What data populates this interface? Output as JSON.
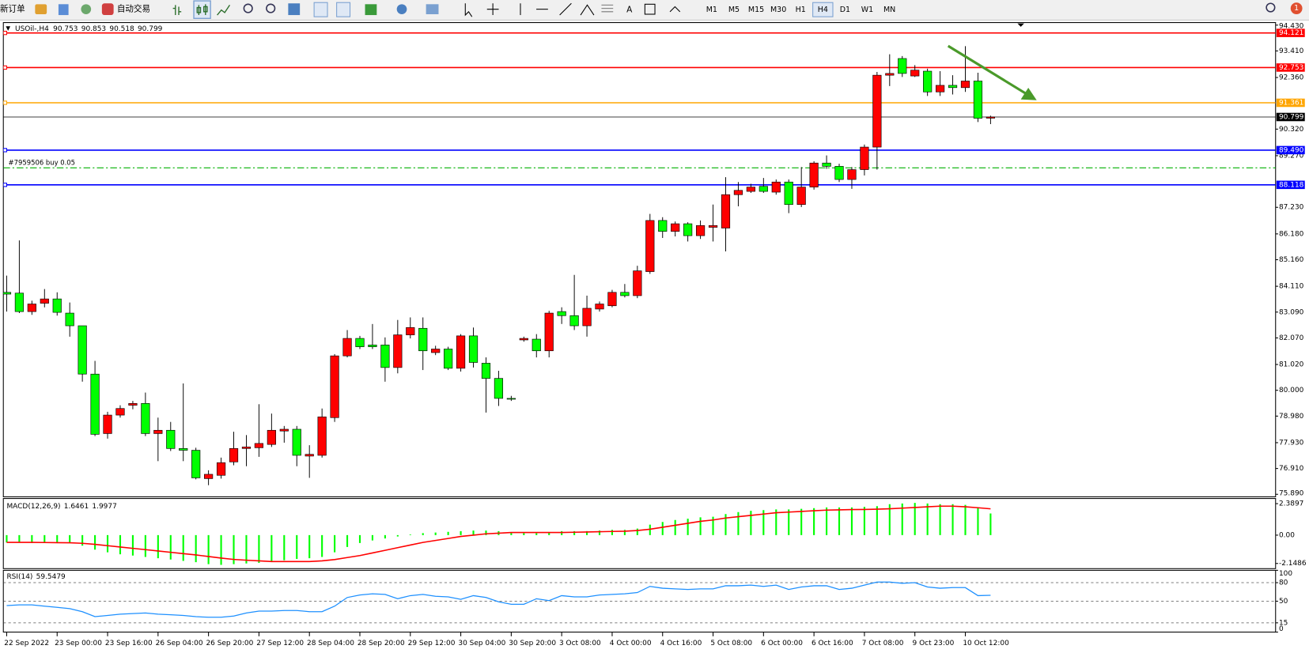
{
  "toolbar": {
    "new_order": "新订单",
    "auto_trading": "自动交易",
    "timeframes": [
      "M1",
      "M5",
      "M15",
      "M30",
      "H1",
      "H4",
      "D1",
      "W1",
      "MN"
    ],
    "active_timeframe": "H4",
    "notifications": 1
  },
  "chart_data": [
    {
      "type": "candlestick",
      "title": "USOil-,H4",
      "categories": [
        "22 Sep 2022",
        null,
        null,
        null,
        "23 Sep 00:00",
        null,
        null,
        null,
        "23 Sep 16:00",
        null,
        null,
        null,
        "26 Sep 04:00",
        null,
        null,
        null,
        "26 Sep 20:00",
        null,
        null,
        null,
        "27 Sep 12:00",
        null,
        null,
        null,
        "28 Sep 04:00",
        null,
        null,
        null,
        "28 Sep 20:00",
        null,
        null,
        null,
        "29 Sep 12:00",
        null,
        null,
        null,
        "30 Sep 04:00",
        null,
        null,
        null,
        "30 Sep 20:00",
        null,
        null,
        null,
        "3 Oct 08:00",
        null,
        null,
        null,
        "4 Oct 00:00",
        null,
        null,
        null,
        "4 Oct 16:00",
        null,
        null,
        null,
        "5 Oct 08:00",
        null,
        null,
        null,
        "6 Oct 00:00",
        null,
        null,
        null,
        "6 Oct 16:00",
        null,
        null,
        null,
        "7 Oct 08:00",
        null,
        null,
        null,
        "9 Oct 23:00",
        null,
        null,
        null,
        "10 Oct 12:00",
        null,
        null
      ],
      "open": [
        83.87,
        83.84,
        83.11,
        83.44,
        83.61,
        83.05,
        82.55,
        80.64,
        78.29,
        79.02,
        79.41,
        79.48,
        78.29,
        78.42,
        77.7,
        77.63,
        76.51,
        76.64,
        77.17,
        77.7,
        77.73,
        77.86,
        78.39,
        78.46,
        77.4,
        77.43,
        78.92,
        81.36,
        82.05,
        81.79,
        81.79,
        80.9,
        82.19,
        82.45,
        81.49,
        81.63,
        80.87,
        82.15,
        81.07,
        80.47,
        79.68,
        81.99,
        82.02,
        81.56,
        83.11,
        82.95,
        82.55,
        83.21,
        83.34,
        83.87,
        83.74,
        84.69,
        86.71,
        86.28,
        86.58,
        86.11,
        86.44,
        86.41,
        87.73,
        87.86,
        88.06,
        87.83,
        88.23,
        87.34,
        88.03,
        88.98,
        88.85,
        88.33,
        88.72,
        89.61,
        92.45,
        93.11,
        92.42,
        92.61,
        91.79,
        92.05,
        91.96,
        92.22,
        90.753
      ],
      "high": [
        84.53,
        85.92,
        83.54,
        84.0,
        83.87,
        83.47,
        82.55,
        81.16,
        79.15,
        79.41,
        79.58,
        79.91,
        78.92,
        78.75,
        80.27,
        77.73,
        76.84,
        77.34,
        78.36,
        78.23,
        79.45,
        79.08,
        78.59,
        78.59,
        77.83,
        79.28,
        81.43,
        82.38,
        82.15,
        82.62,
        82.09,
        82.78,
        82.88,
        82.88,
        81.76,
        81.72,
        82.22,
        82.48,
        81.3,
        80.77,
        79.78,
        82.12,
        82.22,
        83.14,
        83.28,
        84.56,
        83.74,
        83.51,
        83.97,
        84.2,
        84.92,
        86.97,
        86.84,
        86.67,
        86.64,
        86.71,
        87.34,
        88.42,
        88.23,
        88.16,
        88.39,
        88.33,
        88.33,
        88.82,
        89.05,
        89.28,
        88.95,
        88.82,
        89.71,
        92.58,
        93.28,
        93.21,
        92.85,
        92.71,
        92.61,
        92.45,
        93.6,
        92.55,
        90.853
      ],
      "low": [
        83.11,
        83.05,
        82.98,
        83.28,
        82.95,
        82.12,
        80.34,
        78.19,
        78.09,
        78.92,
        79.25,
        78.19,
        77.2,
        77.6,
        77.2,
        76.48,
        76.25,
        76.51,
        77.04,
        77.0,
        77.37,
        77.76,
        77.93,
        77.0,
        76.54,
        77.34,
        78.75,
        81.3,
        81.63,
        81.63,
        80.34,
        80.67,
        82.05,
        80.8,
        81.39,
        80.8,
        80.74,
        80.9,
        79.12,
        79.38,
        79.58,
        81.92,
        81.3,
        81.3,
        82.62,
        82.38,
        82.12,
        83.11,
        83.28,
        83.67,
        83.64,
        84.6,
        86.02,
        86.08,
        85.88,
        85.98,
        85.88,
        85.49,
        87.27,
        87.8,
        87.8,
        87.73,
        87.0,
        87.24,
        87.93,
        88.75,
        88.23,
        87.96,
        88.49,
        88.72,
        92.02,
        92.38,
        92.38,
        91.63,
        91.63,
        91.69,
        91.79,
        90.6,
        90.518
      ],
      "close": [
        83.8,
        83.11,
        83.41,
        83.61,
        83.08,
        82.55,
        80.64,
        78.26,
        79.02,
        79.28,
        79.48,
        78.29,
        78.42,
        77.7,
        77.63,
        76.54,
        76.68,
        77.14,
        77.7,
        77.76,
        77.9,
        78.42,
        78.46,
        77.43,
        77.47,
        78.95,
        81.36,
        82.05,
        81.72,
        81.72,
        80.9,
        82.19,
        82.48,
        81.56,
        81.63,
        80.87,
        82.15,
        81.1,
        80.47,
        79.68,
        79.65,
        82.05,
        81.56,
        83.05,
        82.95,
        82.55,
        83.24,
        83.41,
        83.87,
        83.74,
        84.72,
        86.71,
        86.28,
        86.58,
        86.11,
        86.51,
        86.51,
        87.73,
        87.9,
        88.03,
        87.86,
        88.23,
        87.34,
        88.03,
        88.98,
        88.85,
        88.33,
        88.72,
        89.61,
        92.45,
        92.52,
        92.52,
        92.65,
        91.79,
        92.05,
        91.96,
        92.22,
        90.75,
        90.799
      ],
      "up_color": "#ff0000",
      "down_color": "#00ff00",
      "ylim": [
        75.79,
        94.53
      ],
      "yticks": [
        {
          "value": 94.43,
          "label": "94.430"
        },
        {
          "value": 93.41,
          "label": "93.410"
        },
        {
          "value": 92.36,
          "label": "92.360"
        },
        {
          "value": 90.32,
          "label": "90.320"
        },
        {
          "value": 89.27,
          "label": "89.270"
        },
        {
          "value": 87.23,
          "label": "87.230"
        },
        {
          "value": 86.18,
          "label": "86.180"
        },
        {
          "value": 85.16,
          "label": "85.160"
        },
        {
          "value": 84.11,
          "label": "84.110"
        },
        {
          "value": 83.09,
          "label": "83.090"
        },
        {
          "value": 82.07,
          "label": "82.070"
        },
        {
          "value": 81.02,
          "label": "81.020"
        },
        {
          "value": 80,
          "label": "80.000"
        },
        {
          "value": 78.98,
          "label": "78.980"
        },
        {
          "value": 77.93,
          "label": "77.930"
        },
        {
          "value": 76.91,
          "label": "76.910"
        },
        {
          "value": 75.89,
          "label": "75.890"
        }
      ],
      "levels": [
        {
          "value": 94.121,
          "color": "#ff0000"
        },
        {
          "value": 92.753,
          "color": "#ff0000"
        },
        {
          "value": 91.361,
          "color": "#ffa500"
        },
        {
          "value": 89.49,
          "label": "89.490",
          "color": "#0000ff"
        },
        {
          "value": 88.118,
          "color": "#0000ff"
        }
      ],
      "order_line": {
        "label": "#7959506 buy 0.05",
        "value": 88.79,
        "color": "#00b000"
      }
    },
    {
      "type": "macd",
      "title": "MACD(12,26,9)",
      "histogram": {
        "color": "#00ff00",
        "values": [
          -0.55,
          -0.55,
          -0.6,
          -0.6,
          -0.55,
          -0.6,
          -0.8,
          -1.1,
          -1.3,
          -1.45,
          -1.55,
          -1.65,
          -1.75,
          -1.85,
          -1.95,
          -2.05,
          -2.2,
          -2.25,
          -2.2,
          -2.15,
          -2.1,
          -2.0,
          -1.9,
          -1.8,
          -1.75,
          -1.65,
          -1.3,
          -0.9,
          -0.6,
          -0.4,
          -0.25,
          -0.1,
          0.05,
          0.15,
          0.2,
          0.25,
          0.3,
          0.35,
          0.35,
          0.3,
          0.2,
          0.15,
          0.15,
          0.2,
          0.3,
          0.3,
          0.3,
          0.35,
          0.4,
          0.4,
          0.5,
          0.8,
          1.0,
          1.15,
          1.25,
          1.35,
          1.4,
          1.6,
          1.75,
          1.85,
          1.9,
          1.95,
          1.95,
          2.0,
          2.05,
          2.1,
          2.1,
          2.1,
          2.15,
          2.2,
          2.35,
          2.4,
          2.45,
          2.4,
          2.35,
          2.35,
          2.3,
          2.1,
          1.6461
        ]
      },
      "signal": {
        "color": "#ff0000",
        "values": [
          -0.55,
          -0.55,
          -0.55,
          -0.56,
          -0.57,
          -0.58,
          -0.62,
          -0.7,
          -0.8,
          -0.9,
          -1.0,
          -1.1,
          -1.2,
          -1.3,
          -1.4,
          -1.5,
          -1.62,
          -1.74,
          -1.84,
          -1.9,
          -1.95,
          -2.0,
          -2.0,
          -2.0,
          -2.0,
          -1.95,
          -1.85,
          -1.7,
          -1.55,
          -1.35,
          -1.15,
          -0.95,
          -0.75,
          -0.55,
          -0.4,
          -0.25,
          -0.1,
          0.0,
          0.1,
          0.15,
          0.2,
          0.2,
          0.2,
          0.2,
          0.2,
          0.22,
          0.24,
          0.26,
          0.28,
          0.3,
          0.35,
          0.45,
          0.6,
          0.75,
          0.9,
          1.05,
          1.15,
          1.3,
          1.4,
          1.5,
          1.6,
          1.7,
          1.75,
          1.8,
          1.85,
          1.9,
          1.92,
          1.94,
          1.95,
          1.97,
          2.0,
          2.05,
          2.1,
          2.15,
          2.2,
          2.2,
          2.15,
          2.08,
          1.9977
        ]
      },
      "ylim": [
        -2.54,
        2.78
      ],
      "yticks": [
        2.3897,
        {
          "value": 0,
          "label": "0.00"
        },
        -2.1486
      ]
    },
    {
      "type": "line",
      "title": "RSI(14)",
      "color": "#1e90ff",
      "values": [
        43,
        44,
        44,
        42,
        40,
        38,
        33,
        25,
        27,
        29,
        30,
        31,
        29,
        28,
        27,
        25,
        24,
        24,
        26,
        31,
        34,
        34,
        35,
        35,
        33,
        33,
        42,
        56,
        60,
        62,
        61,
        54,
        59,
        61,
        58,
        57,
        53,
        59,
        56,
        49,
        45,
        45,
        54,
        51,
        59,
        57,
        57,
        60,
        61,
        62,
        64,
        74,
        71,
        70,
        69,
        70,
        70,
        75,
        75,
        76,
        74,
        76,
        69,
        73,
        75,
        75,
        69,
        71,
        76,
        81,
        81,
        79,
        80,
        73,
        71,
        72,
        72,
        59,
        59.5479
      ],
      "ylim": [
        0,
        100
      ],
      "yticks": [
        100,
        80,
        50,
        15,
        0
      ]
    }
  ]
}
